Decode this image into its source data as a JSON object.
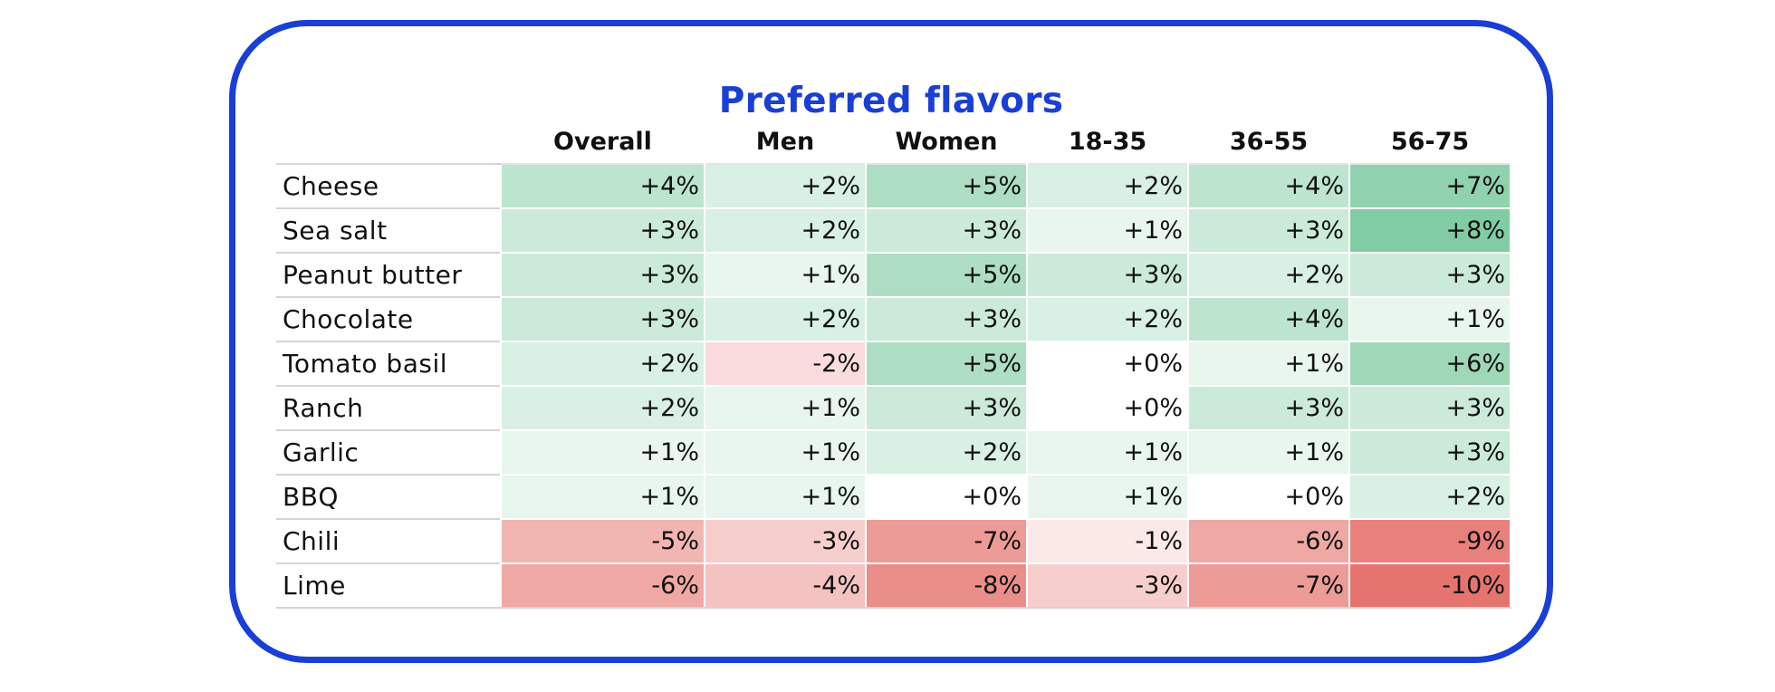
{
  "chart_data": {
    "type": "heatmap",
    "title": "Preferred flavors",
    "columns": [
      "Overall",
      "Men",
      "Women",
      "18-35",
      "36-55",
      "56-75"
    ],
    "rows": [
      {
        "label": "Cheese",
        "values": [
          4,
          2,
          5,
          2,
          4,
          7
        ],
        "display": [
          "+4%",
          "+2%",
          "+5%",
          "+2%",
          "+4%",
          "+7%"
        ]
      },
      {
        "label": "Sea salt",
        "values": [
          3,
          2,
          3,
          1,
          3,
          8
        ],
        "display": [
          "+3%",
          "+2%",
          "+3%",
          "+1%",
          "+3%",
          "+8%"
        ]
      },
      {
        "label": "Peanut butter",
        "values": [
          3,
          1,
          5,
          3,
          2,
          3
        ],
        "display": [
          "+3%",
          "+1%",
          "+5%",
          "+3%",
          "+2%",
          "+3%"
        ]
      },
      {
        "label": "Chocolate",
        "values": [
          3,
          2,
          3,
          2,
          4,
          1
        ],
        "display": [
          "+3%",
          "+2%",
          "+3%",
          "+2%",
          "+4%",
          "+1%"
        ]
      },
      {
        "label": "Tomato basil",
        "values": [
          2,
          -2,
          5,
          0,
          1,
          6
        ],
        "display": [
          "+2%",
          "-2%",
          "+5%",
          "+0%",
          "+1%",
          "+6%"
        ]
      },
      {
        "label": "Ranch",
        "values": [
          2,
          1,
          3,
          0,
          3,
          3
        ],
        "display": [
          "+2%",
          "+1%",
          "+3%",
          "+0%",
          "+3%",
          "+3%"
        ]
      },
      {
        "label": "Garlic",
        "values": [
          1,
          1,
          2,
          1,
          1,
          3
        ],
        "display": [
          "+1%",
          "+1%",
          "+2%",
          "+1%",
          "+1%",
          "+3%"
        ]
      },
      {
        "label": "BBQ",
        "values": [
          1,
          1,
          0,
          1,
          0,
          2
        ],
        "display": [
          "+1%",
          "+1%",
          "+0%",
          "+1%",
          "+0%",
          "+2%"
        ]
      },
      {
        "label": "Chili",
        "values": [
          -5,
          -3,
          -7,
          -1,
          -6,
          -9
        ],
        "display": [
          "-5%",
          "-3%",
          "-7%",
          "-1%",
          "-6%",
          "-9%"
        ]
      },
      {
        "label": "Lime",
        "values": [
          -6,
          -4,
          -8,
          -3,
          -7,
          -10
        ],
        "display": [
          "-6%",
          "-4%",
          "-8%",
          "-3%",
          "-7%",
          "-10%"
        ]
      }
    ],
    "color_scale": {
      "positive": "#73c69a",
      "negative": "#e46e68",
      "neutral": "#ffffff",
      "max_abs": 10
    },
    "accent_color": "#1a3fd6"
  }
}
